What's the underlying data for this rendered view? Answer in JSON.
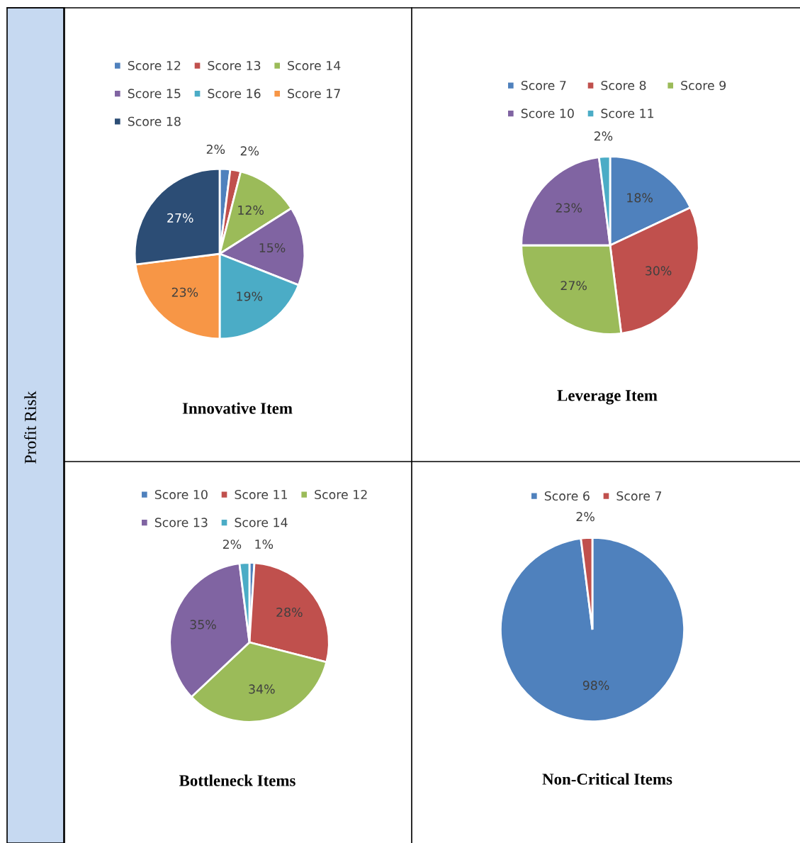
{
  "chart_data": [
    {
      "type": "pie",
      "title": "Innovative Item",
      "categories": [
        "Score 12",
        "Score 13",
        "Score 14",
        "Score 15",
        "Score 16",
        "Score 17",
        "Score 18"
      ],
      "values": [
        2,
        2,
        12,
        15,
        19,
        23,
        27
      ],
      "colors": [
        "#4f81bd",
        "#c0504d",
        "#9bbb59",
        "#8064a2",
        "#4bacc6",
        "#f79646",
        "#2c4d75"
      ],
      "value_labels": [
        "2%",
        "2%",
        "12%",
        "15%",
        "19%",
        "23%",
        "27%"
      ],
      "legend": "top",
      "annotations": [
        "Profit Risk"
      ]
    },
    {
      "type": "pie",
      "title": "Leverage Item",
      "categories": [
        "Score 7",
        "Score 8",
        "Score 9",
        "Score 10",
        "Score 11"
      ],
      "values": [
        18,
        30,
        27,
        23,
        2
      ],
      "colors": [
        "#4f81bd",
        "#c0504d",
        "#9bbb59",
        "#8064a2",
        "#4bacc6"
      ],
      "value_labels": [
        "18%",
        "30%",
        "27%",
        "23%",
        "2%"
      ],
      "legend": "top"
    },
    {
      "type": "pie",
      "title": "Bottleneck Items",
      "categories": [
        "Score 10",
        "Score 11",
        "Score 12",
        "Score 13",
        "Score 14"
      ],
      "values": [
        1,
        28,
        34,
        35,
        2
      ],
      "colors": [
        "#4f81bd",
        "#c0504d",
        "#9bbb59",
        "#8064a2",
        "#4bacc6"
      ],
      "value_labels": [
        "1%",
        "28%",
        "34%",
        "35%",
        "2%"
      ],
      "legend": "top"
    },
    {
      "type": "pie",
      "title": "Non-Critical Items",
      "categories": [
        "Score 6",
        "Score 7"
      ],
      "values": [
        98,
        2
      ],
      "colors": [
        "#4f81bd",
        "#c0504d"
      ],
      "value_labels": [
        "98%",
        "2%"
      ],
      "legend": "top"
    }
  ]
}
